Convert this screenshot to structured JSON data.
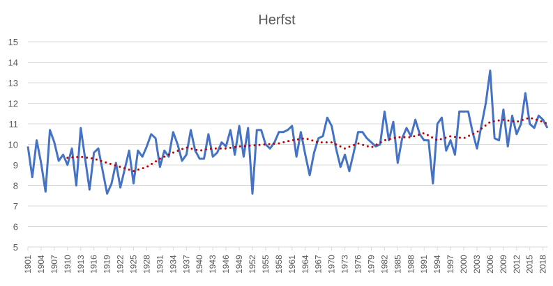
{
  "chart_data": {
    "type": "line",
    "title": "Herfst",
    "xlabel": "",
    "ylabel": "",
    "ylim": [
      5,
      15
    ],
    "yticks": [
      5,
      6,
      7,
      8,
      9,
      10,
      11,
      12,
      13,
      14,
      15
    ],
    "grid": true,
    "legend": "none",
    "x_range": [
      1901,
      2019
    ],
    "xtick_labels": [
      "1901",
      "1904",
      "1907",
      "1910",
      "1913",
      "1916",
      "1919",
      "1922",
      "1925",
      "1928",
      "1931",
      "1934",
      "1937",
      "1940",
      "1943",
      "1946",
      "1949",
      "1952",
      "1955",
      "1958",
      "1961",
      "1964",
      "1967",
      "1970",
      "1973",
      "1976",
      "1979",
      "1982",
      "1985",
      "1988",
      "1991",
      "1994",
      "1997",
      "2000",
      "2003",
      "2006",
      "2009",
      "2012",
      "2015",
      "2018"
    ],
    "series": [
      {
        "color": "#4472C4",
        "style": "solid",
        "x": [
          1901,
          1902,
          1903,
          1904,
          1905,
          1906,
          1907,
          1908,
          1909,
          1910,
          1911,
          1912,
          1913,
          1914,
          1915,
          1916,
          1917,
          1918,
          1919,
          1920,
          1921,
          1922,
          1923,
          1924,
          1925,
          1926,
          1927,
          1928,
          1929,
          1930,
          1931,
          1932,
          1933,
          1934,
          1935,
          1936,
          1937,
          1938,
          1939,
          1940,
          1941,
          1942,
          1943,
          1944,
          1945,
          1946,
          1947,
          1948,
          1949,
          1950,
          1951,
          1952,
          1953,
          1954,
          1955,
          1956,
          1957,
          1958,
          1959,
          1960,
          1961,
          1962,
          1963,
          1964,
          1965,
          1966,
          1967,
          1968,
          1969,
          1970,
          1971,
          1972,
          1973,
          1974,
          1975,
          1976,
          1977,
          1978,
          1979,
          1980,
          1981,
          1982,
          1983,
          1984,
          1985,
          1986,
          1987,
          1988,
          1989,
          1990,
          1991,
          1992,
          1993,
          1994,
          1995,
          1996,
          1997,
          1998,
          1999,
          2000,
          2001,
          2002,
          2003,
          2004,
          2005,
          2006,
          2007,
          2008,
          2009,
          2010,
          2011,
          2012,
          2013,
          2014,
          2015,
          2016,
          2017,
          2018,
          2019
        ],
        "values": [
          9.9,
          8.4,
          10.2,
          9.1,
          7.7,
          10.7,
          10.1,
          9.2,
          9.5,
          9.0,
          9.8,
          8.0,
          10.8,
          9.3,
          7.8,
          9.6,
          9.8,
          8.7,
          7.6,
          8.1,
          9.1,
          7.9,
          8.8,
          9.7,
          8.1,
          9.7,
          9.4,
          9.9,
          10.5,
          10.3,
          8.9,
          9.7,
          9.4,
          10.6,
          10.0,
          9.2,
          9.5,
          10.7,
          9.7,
          9.3,
          9.3,
          10.5,
          9.4,
          9.6,
          10.1,
          9.9,
          10.7,
          9.5,
          10.9,
          9.4,
          10.8,
          7.6,
          10.7,
          10.7,
          10.0,
          9.8,
          10.1,
          10.6,
          10.6,
          10.7,
          10.9,
          9.4,
          10.6,
          9.5,
          8.5,
          9.6,
          10.3,
          10.4,
          11.3,
          10.9,
          9.8,
          8.9,
          9.5,
          8.7,
          9.6,
          10.6,
          10.6,
          10.3,
          10.1,
          9.9,
          10.0,
          11.6,
          10.2,
          11.1,
          9.1,
          10.3,
          10.8,
          10.4,
          11.2,
          10.5,
          10.2,
          10.2,
          8.1,
          11.0,
          11.3,
          9.7,
          10.2,
          9.5,
          11.6,
          11.6,
          11.6,
          10.6,
          9.8,
          10.9,
          12.0,
          13.6,
          10.3,
          10.2,
          11.7,
          9.9,
          11.4,
          10.5,
          11.0,
          12.5,
          11.0,
          10.8,
          11.4,
          11.2,
          10.8
        ]
      },
      {
        "color": "#C00000",
        "style": "dotted-trendline",
        "x": [
          1910,
          1913,
          1916,
          1919,
          1922,
          1925,
          1928,
          1931,
          1934,
          1937,
          1940,
          1943,
          1946,
          1949,
          1952,
          1955,
          1958,
          1961,
          1964,
          1967,
          1970,
          1973,
          1976,
          1979,
          1982,
          1985,
          1988,
          1991,
          1994,
          1997,
          2000,
          2003,
          2006,
          2009,
          2012,
          2015,
          2018,
          2019
        ],
        "values": [
          9.35,
          9.4,
          9.3,
          9.1,
          8.9,
          8.7,
          8.9,
          9.3,
          9.6,
          9.85,
          9.7,
          9.8,
          9.8,
          9.9,
          9.95,
          10.0,
          10.05,
          10.2,
          10.3,
          10.1,
          10.1,
          9.8,
          10.05,
          9.85,
          10.2,
          10.35,
          10.35,
          10.55,
          10.2,
          10.4,
          10.3,
          10.6,
          11.1,
          11.2,
          11.1,
          11.3,
          11.1,
          11.0
        ]
      }
    ]
  }
}
